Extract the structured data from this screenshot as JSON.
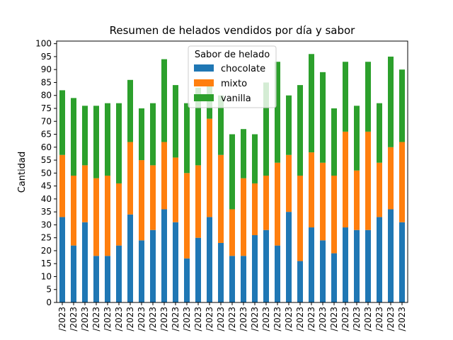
{
  "chart_data": {
    "type": "stacked_bar",
    "title": "Resumen de helados vendidos por día y sabor",
    "ylabel": "Cantidad",
    "legend_title": "Sabor de helado",
    "legend": "upper center",
    "categories": [
      "/2023",
      "/2023",
      "/2023",
      "/2023",
      "/2023",
      "/2023",
      "/2023",
      "/2023",
      "/2023",
      "/2023",
      "/2023",
      "/2023",
      "/2023",
      "/2023",
      "/2023",
      "/2023",
      "/2023",
      "/2023",
      "/2023",
      "/2023",
      "/2023",
      "/2023",
      "/2023",
      "/2023",
      "/2023",
      "/2023",
      "/2023",
      "/2023",
      "/2023",
      "/2023",
      "/2023"
    ],
    "series": [
      {
        "name": "chocolate",
        "color": "#1f77b4",
        "values": [
          33,
          22,
          31,
          18,
          18,
          22,
          34,
          24,
          28,
          36,
          31,
          17,
          25,
          33,
          23,
          18,
          18,
          26,
          28,
          22,
          35,
          16,
          29,
          24,
          19,
          29,
          28,
          28,
          33,
          36,
          31
        ]
      },
      {
        "name": "mixto",
        "color": "#ff7f0e",
        "values": [
          24,
          27,
          22,
          30,
          31,
          24,
          28,
          31,
          25,
          26,
          25,
          33,
          28,
          38,
          34,
          18,
          30,
          20,
          21,
          32,
          22,
          33,
          29,
          30,
          30,
          37,
          23,
          38,
          21,
          24,
          31
        ]
      },
      {
        "name": "vanilla",
        "color": "#2ca02c",
        "values": [
          25,
          30,
          23,
          28,
          28,
          31,
          24,
          20,
          24,
          32,
          28,
          27,
          30,
          13,
          23,
          29,
          19,
          19,
          36,
          39,
          23,
          35,
          38,
          35,
          26,
          27,
          25,
          27,
          23,
          35,
          28
        ]
      }
    ],
    "ylim": [
      0,
      101
    ],
    "yticks": [
      0,
      5,
      10,
      15,
      20,
      25,
      30,
      35,
      40,
      45,
      50,
      55,
      60,
      65,
      70,
      75,
      80,
      85,
      90,
      95,
      100
    ]
  }
}
